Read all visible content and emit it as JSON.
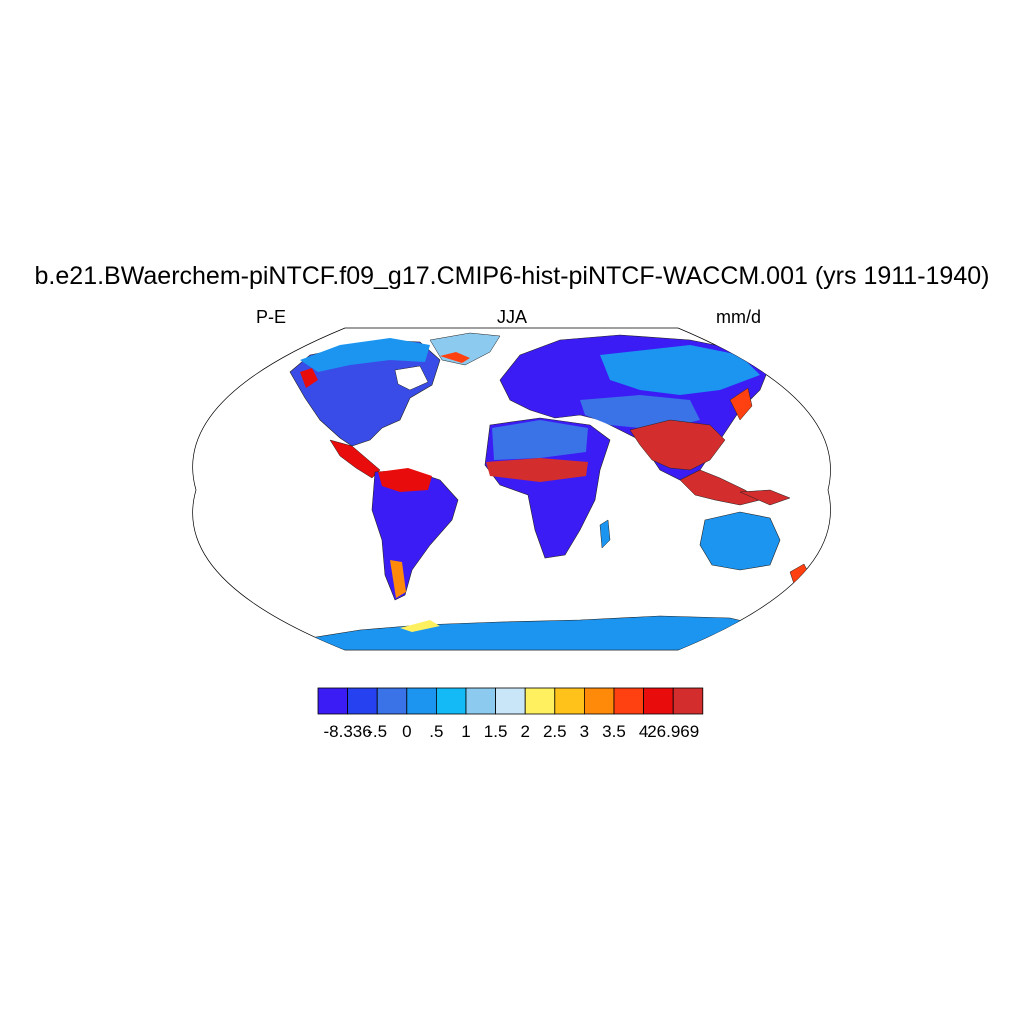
{
  "title": "b.e21.BWaerchem-piNTCF.f09_g17.CMIP6-hist-piNTCF-WACCM.001 (yrs 1911-1940)",
  "left_label": "P-E",
  "center_label": "JJA",
  "right_label": "mm/d",
  "colorbar": {
    "colors": [
      "#3c1cf5",
      "#2641f0",
      "#3a72e8",
      "#1b95f0",
      "#14baf5",
      "#8ccaf0",
      "#c8e6f8",
      "#fff060",
      "#ffc21a",
      "#ff8a0a",
      "#ff4010",
      "#e80c0c",
      "#d32d2d"
    ],
    "labels": [
      "-8.336",
      "-.5",
      "0",
      ".5",
      "1",
      "1.5",
      "2",
      "2.5",
      "3",
      "3.5",
      "4",
      "26.969"
    ]
  },
  "projection": "Robinson"
}
